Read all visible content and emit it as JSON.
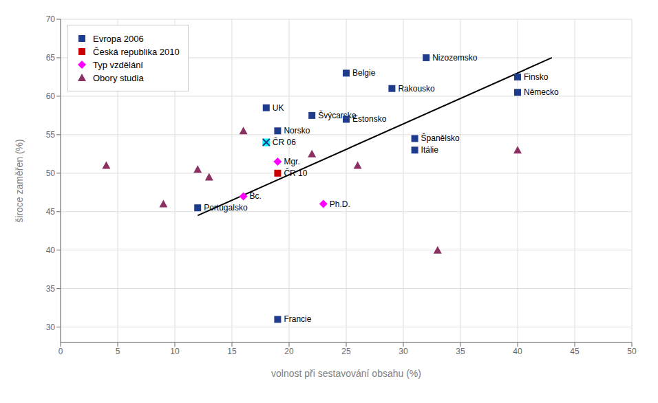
{
  "chart_data": {
    "type": "scatter",
    "xlabel": "volnost při sestavování obsahu (%)",
    "ylabel": "široce zaměřen (%)",
    "xlim": [
      0,
      50
    ],
    "ylim": [
      28,
      70
    ],
    "xticks": [
      0,
      5,
      10,
      15,
      20,
      25,
      30,
      35,
      40,
      45,
      50
    ],
    "yticks": [
      30,
      35,
      40,
      45,
      50,
      55,
      60,
      65,
      70
    ],
    "grid": true,
    "legend": "upper left",
    "series": [
      {
        "type": "line",
        "color": "#000000",
        "line_style": "solid",
        "x": [
          12,
          43
        ],
        "values": [
          44.5,
          65
        ]
      },
      {
        "name": "Evropa 2006",
        "color": "#1F3B8C",
        "marker": "square",
        "x": [
          12,
          18,
          19,
          22,
          25,
          25,
          29,
          32,
          31,
          31,
          40,
          40,
          19
        ],
        "values": [
          45.5,
          58.5,
          55.5,
          57.5,
          57,
          63,
          61,
          65,
          54.5,
          53,
          62.5,
          60.5,
          31
        ],
        "labels": [
          "Portugalsko",
          "UK",
          "Norsko",
          "Švýcarsko",
          "Estonsko",
          "Belgie",
          "Rakousko",
          "Nizozemsko",
          "Španělsko",
          "Itálie",
          "Finsko",
          "Německo",
          "Francie"
        ]
      },
      {
        "color": "#00FFFF",
        "marker": "square_x",
        "x": [
          18
        ],
        "values": [
          54
        ],
        "labels": [
          "ČR 06"
        ]
      },
      {
        "name": "Česká republika 2010",
        "color": "#CC0000",
        "marker": "square",
        "x": [
          19
        ],
        "values": [
          50
        ],
        "labels": [
          "ČR 10"
        ]
      },
      {
        "name": "Typ vzdělání",
        "color": "#FF00FF",
        "marker": "diamond",
        "x": [
          16,
          19,
          23
        ],
        "values": [
          47,
          51.5,
          46
        ],
        "labels": [
          "Bc.",
          "Mgr.",
          "Ph.D."
        ]
      },
      {
        "name": "Obory studia",
        "color": "#8B3060",
        "marker": "triangle",
        "x": [
          4,
          9,
          12,
          13,
          16,
          22,
          26,
          33,
          40
        ],
        "values": [
          51,
          46,
          50.5,
          49.5,
          55.5,
          52.5,
          51,
          40,
          53
        ]
      }
    ]
  }
}
